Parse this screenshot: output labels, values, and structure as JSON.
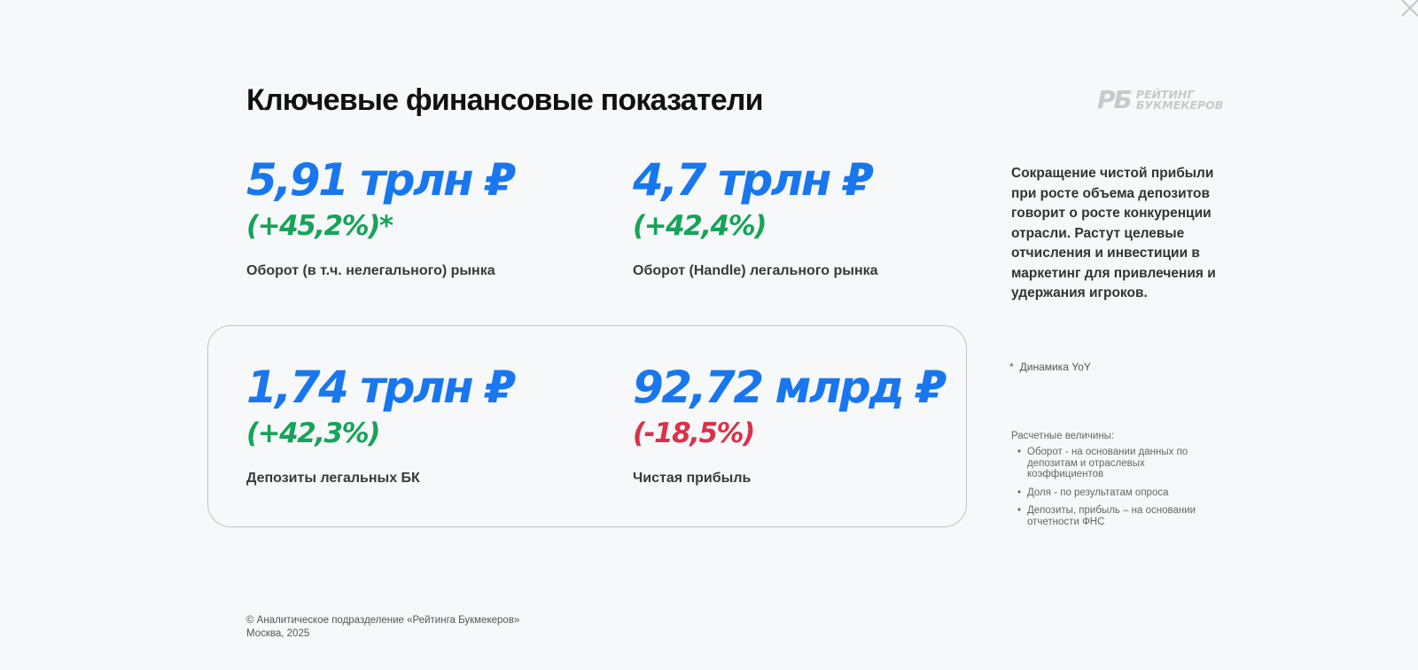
{
  "header": {
    "title": "Ключевые финансовые показатели",
    "logo": {
      "mark": "РБ",
      "line1": "РЕЙТИНГ",
      "line2": "БУКМЕКЕРОВ"
    }
  },
  "metrics": [
    {
      "value": "5,91 трлн ₽",
      "change": "(+45,2%)*",
      "change_status": "positive",
      "label": "Оборот (в т.ч. нелегального) рынка"
    },
    {
      "value": "4,7 трлн ₽",
      "change": "(+42,4%)",
      "change_status": "positive",
      "label": "Оборот (Handle) легального рынка"
    },
    {
      "value": "1,74 трлн ₽",
      "change": "(+42,3%)",
      "change_status": "positive",
      "label": "Депозиты легальных БК"
    },
    {
      "value": "92,72 млрд ₽",
      "change": "(-18,5%)",
      "change_status": "negative",
      "label": "Чистая прибыль"
    }
  ],
  "sidebar": {
    "note": "Сокращение чистой прибыли при росте объема депозитов говорит о росте конкуренции отрасли. Растут целевые отчисления и инвестиции в маркетинг для привлечения и удержания игроков.",
    "footnote_mark": "*",
    "footnote_text": "Динамика YoY",
    "calc_title": "Расчетные величины:",
    "calc_items": [
      {
        "bullet": "•",
        "text": "Оборот - на основании данных по депозитам и отраслевых коэффициентов"
      },
      {
        "bullet": "•",
        "text": "Доля - по результатам опроса"
      },
      {
        "bullet": "•",
        "text": "Депозиты, прибыль – на основании отчетности ФНС"
      }
    ]
  },
  "footer": {
    "line1": "© Аналитическое подразделение «Рейтинга Букмекеров»",
    "line2": "Москва, 2025"
  },
  "colors": {
    "value_blue": "#1877ee",
    "positive_green": "#17a35a",
    "negative_red": "#d8334a",
    "background": "#f7f8f9"
  },
  "icons": {
    "close": "close-icon"
  }
}
